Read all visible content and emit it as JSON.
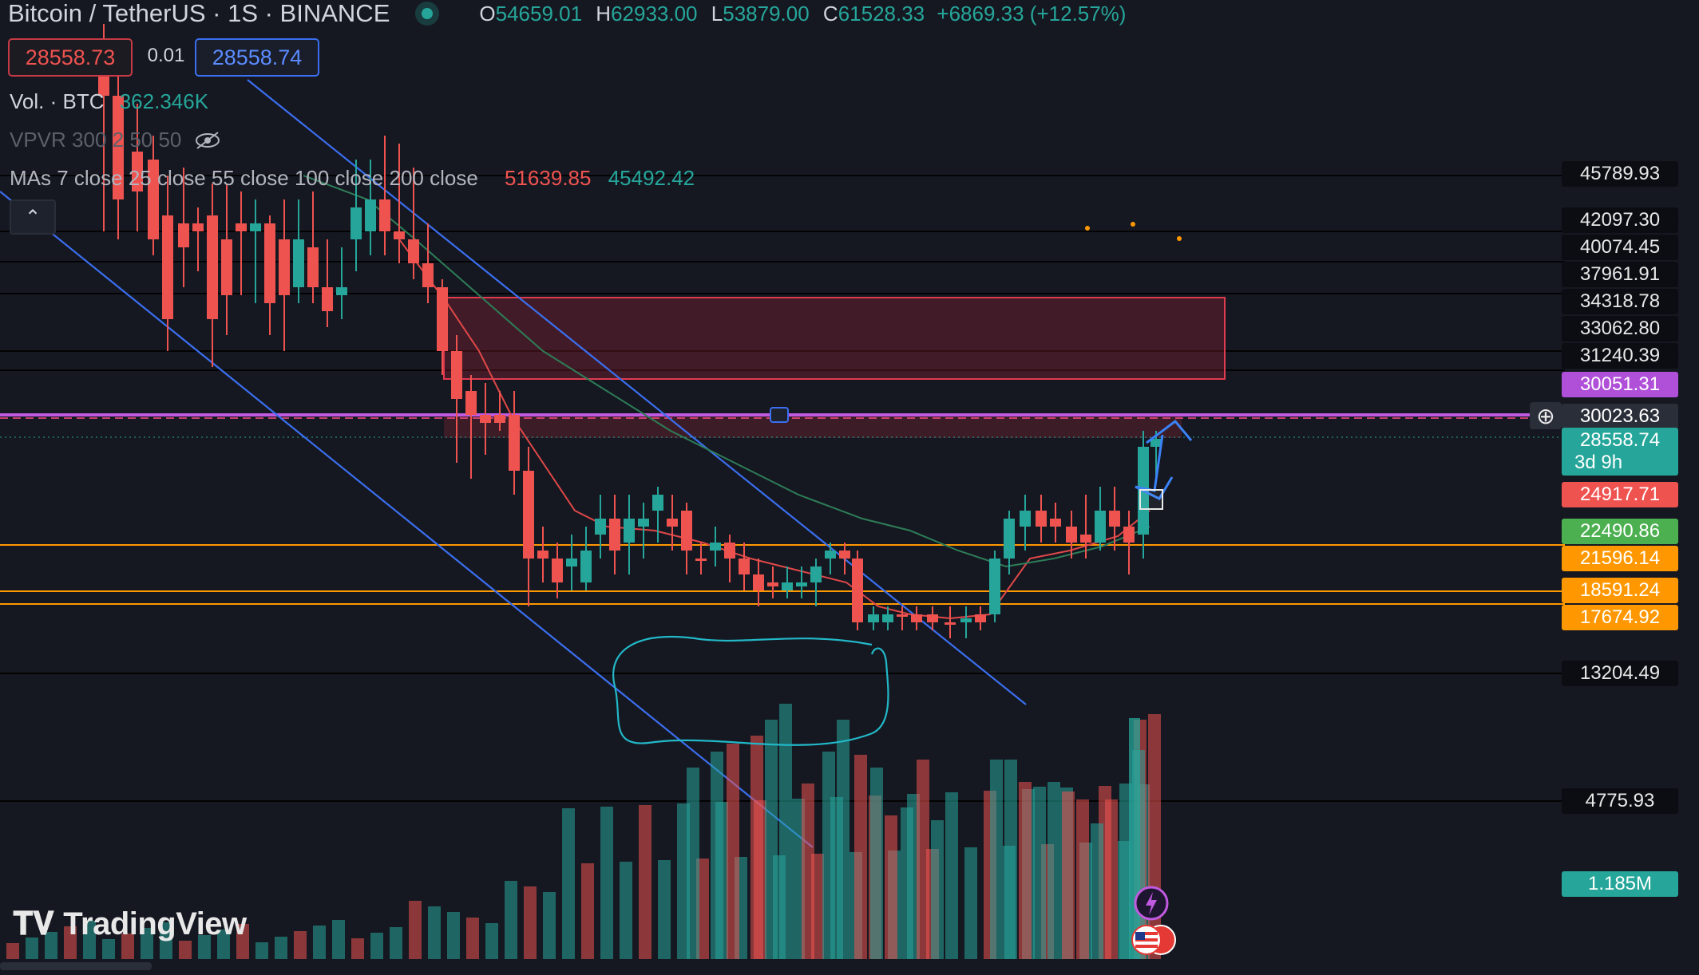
{
  "header": {
    "symbol_title": "Bitcoin / TetherUS · 1S · BINANCE",
    "ohlc": {
      "o_label": "O",
      "o": "54659.01",
      "h_label": "H",
      "h": "62933.00",
      "l_label": "L",
      "l": "53879.00",
      "c_label": "C",
      "c": "61528.33",
      "change": "+6869.33 (+12.57%)"
    }
  },
  "order_buttons": {
    "sell_price": "28558.73",
    "spread": "0.01",
    "buy_price": "28558.74"
  },
  "indicators": {
    "volume_label": "Vol. · BTC",
    "volume_value": "362.346K",
    "vpvr_label": "VPVR 300 2 50 50",
    "mas_label": "MAs 7 close 25 close 55 close 100 close 200 close",
    "ma_value_1": "51639.85",
    "ma_value_2": "45492.42"
  },
  "price_axis_labels": [
    {
      "text": "45789.93",
      "style": "dark"
    },
    {
      "text": "42097.30",
      "style": "dark"
    },
    {
      "text": "40074.45",
      "style": "dark"
    },
    {
      "text": "37961.91",
      "style": "dark"
    },
    {
      "text": "34318.78",
      "style": "dark"
    },
    {
      "text": "33062.80",
      "style": "dark"
    },
    {
      "text": "31240.39",
      "style": "dark"
    },
    {
      "text": "30051.31",
      "style": "purple"
    },
    {
      "text": "30023.63",
      "style": "gray"
    },
    {
      "text": "28558.74",
      "style": "teal"
    },
    {
      "text": "3d 9h",
      "style": "teal"
    },
    {
      "text": "24917.71",
      "style": "red"
    },
    {
      "text": "22490.86",
      "style": "green"
    },
    {
      "text": "21596.14",
      "style": "orange"
    },
    {
      "text": "18591.24",
      "style": "orange"
    },
    {
      "text": "17674.92",
      "style": "orange"
    },
    {
      "text": "13204.49",
      "style": "dark"
    },
    {
      "text": "4775.93",
      "style": "dark"
    },
    {
      "text": "1.185M",
      "style": "teal"
    }
  ],
  "branding": {
    "logo_text": "TradingView"
  },
  "colors": {
    "up": "#26a69a",
    "down": "#ef5350",
    "background": "#151821",
    "accent_purple": "#b04fd8",
    "orange": "#ff9800"
  }
}
